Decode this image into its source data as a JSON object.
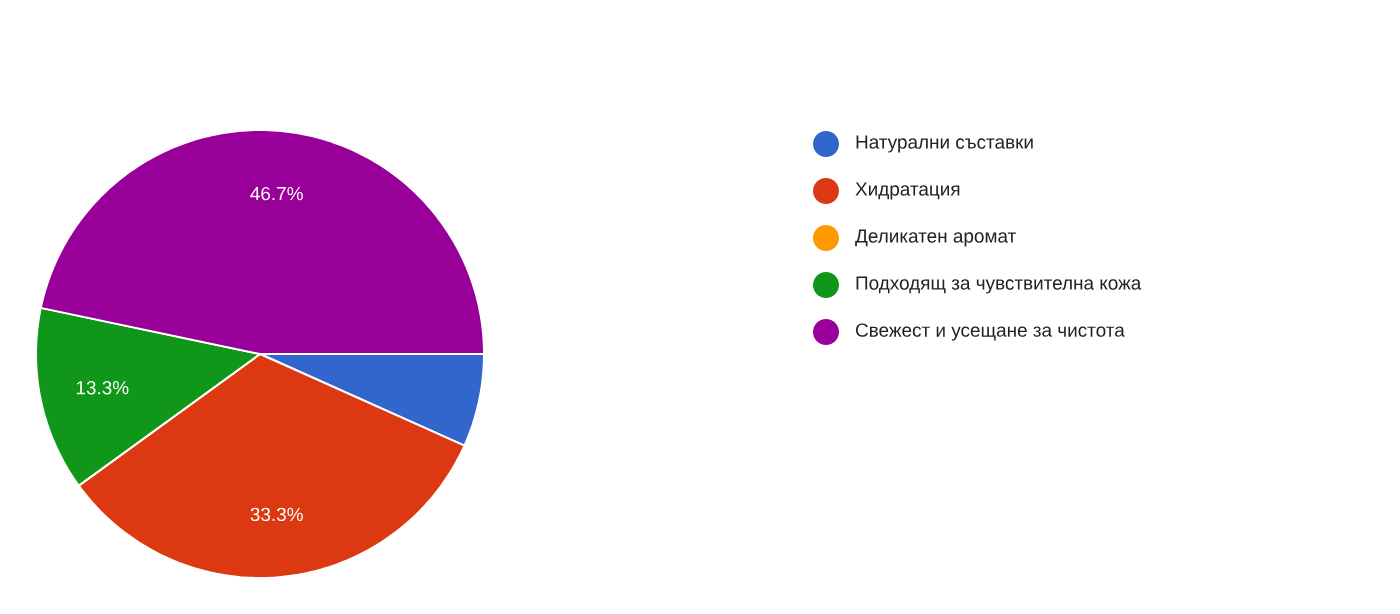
{
  "chart_data": {
    "type": "pie",
    "categories": [
      "Натурални съставки",
      "Хидратация",
      "Деликатен аромат",
      "Подходящ за чувствителна кожа",
      "Свежест и усещане за чистота"
    ],
    "values": [
      6.7,
      33.3,
      0,
      13.3,
      46.7
    ],
    "colors": [
      "#3366cc",
      "#dc3912",
      "#ff9900",
      "#109618",
      "#990099"
    ],
    "value_labels": [
      null,
      "33.3%",
      null,
      "13.3%",
      "46.7%"
    ],
    "legend": "right"
  }
}
